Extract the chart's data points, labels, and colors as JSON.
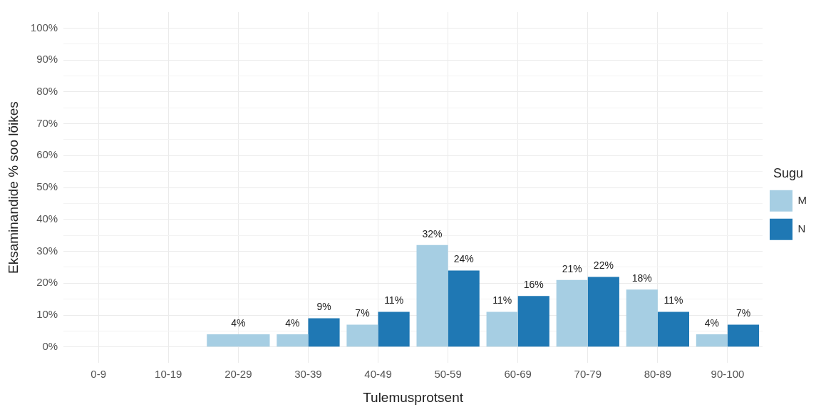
{
  "chart_data": {
    "type": "bar",
    "xlabel": "Tulemusprotsent",
    "ylabel": "Eksaminandide % soo lõikes",
    "legend_title": "Sugu",
    "legend": "right",
    "grid": true,
    "categories": [
      "0-9",
      "10-19",
      "20-29",
      "30-39",
      "40-49",
      "50-59",
      "60-69",
      "70-79",
      "80-89",
      "90-100"
    ],
    "series": [
      {
        "name": "M",
        "color": "#a6cee3",
        "values": [
          null,
          null,
          4,
          4,
          7,
          32,
          11,
          21,
          18,
          4
        ],
        "value_labels": [
          null,
          null,
          "4%",
          "4%",
          "7%",
          "32%",
          "11%",
          "21%",
          "18%",
          "4%"
        ]
      },
      {
        "name": "N",
        "color": "#1f78b4",
        "values": [
          null,
          null,
          null,
          9,
          11,
          24,
          16,
          22,
          11,
          7
        ],
        "value_labels": [
          null,
          null,
          null,
          "9%",
          "11%",
          "24%",
          "16%",
          "22%",
          "11%",
          "7%"
        ]
      }
    ],
    "ylim": [
      -5,
      105
    ],
    "yticks": [
      {
        "value": 0,
        "label": "0%"
      },
      {
        "value": 5,
        "label": null
      },
      {
        "value": 10,
        "label": "10%"
      },
      {
        "value": 15,
        "label": null
      },
      {
        "value": 20,
        "label": "20%"
      },
      {
        "value": 25,
        "label": null
      },
      {
        "value": 30,
        "label": "30%"
      },
      {
        "value": 35,
        "label": null
      },
      {
        "value": 40,
        "label": "40%"
      },
      {
        "value": 45,
        "label": null
      },
      {
        "value": 50,
        "label": "50%"
      },
      {
        "value": 55,
        "label": null
      },
      {
        "value": 60,
        "label": "60%"
      },
      {
        "value": 65,
        "label": null
      },
      {
        "value": 70,
        "label": "70%"
      },
      {
        "value": 75,
        "label": null
      },
      {
        "value": 80,
        "label": "80%"
      },
      {
        "value": 85,
        "label": null
      },
      {
        "value": 90,
        "label": "90%"
      },
      {
        "value": 95,
        "label": null
      },
      {
        "value": 100,
        "label": "100%"
      }
    ]
  }
}
